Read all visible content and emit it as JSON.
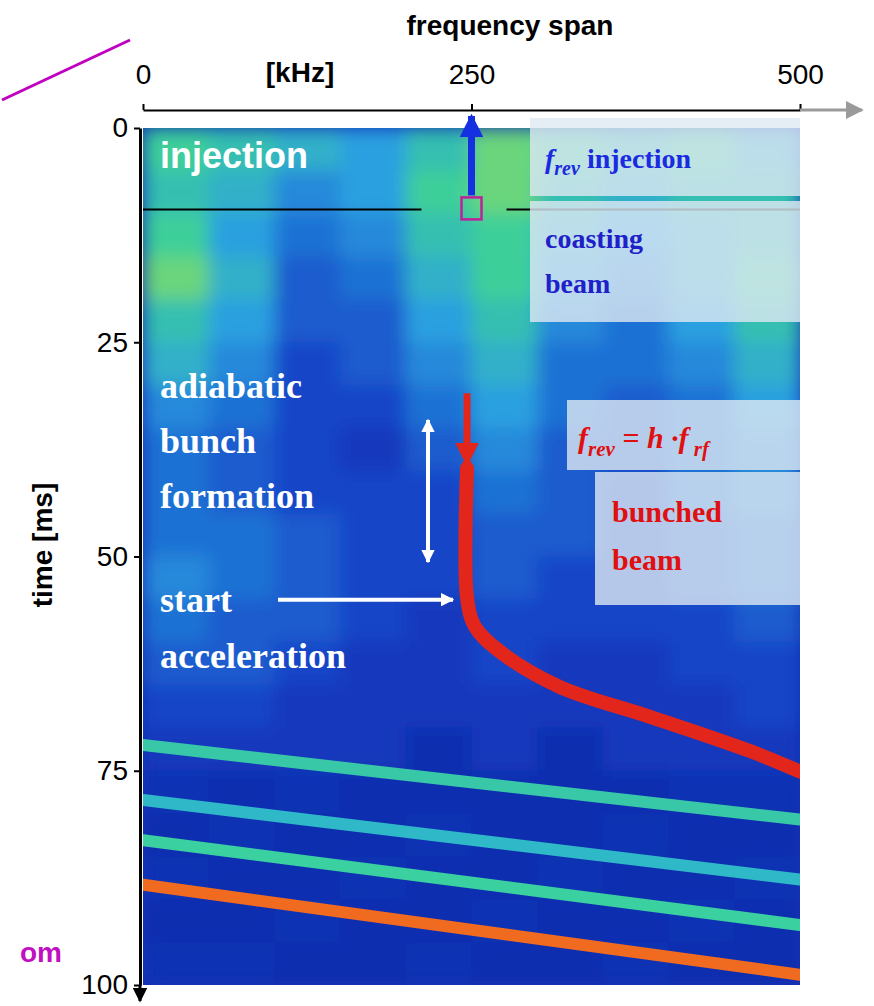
{
  "chart_data": {
    "type": "spectrogram",
    "xlabel": [
      "frequency span",
      "[kHz]"
    ],
    "ylabel": "time [ms]",
    "xlim": [
      0,
      500
    ],
    "ylim": [
      0,
      100
    ],
    "xticks": [
      0,
      250,
      500
    ],
    "yticks": [
      0,
      25,
      50,
      75,
      100
    ],
    "cells": {
      "xbins": [
        0,
        50,
        100,
        150,
        200,
        250,
        300,
        350,
        400,
        450,
        500
      ],
      "ybins": [
        0,
        5,
        10,
        15,
        20,
        25,
        30,
        35,
        40,
        45,
        50,
        55,
        60,
        65,
        70,
        75,
        80,
        85,
        90,
        95,
        100
      ],
      "range": [
        0,
        1
      ],
      "values": [
        [
          0.55,
          0.5,
          0.45,
          0.4,
          0.5,
          0.6,
          0.55,
          0.5,
          0.55,
          0.45
        ],
        [
          0.5,
          0.45,
          0.35,
          0.4,
          0.55,
          0.6,
          0.5,
          0.45,
          0.5,
          0.5
        ],
        [
          0.55,
          0.4,
          0.3,
          0.35,
          0.5,
          0.55,
          0.45,
          0.4,
          0.45,
          0.5
        ],
        [
          0.6,
          0.45,
          0.25,
          0.3,
          0.45,
          0.55,
          0.4,
          0.35,
          0.45,
          0.55
        ],
        [
          0.5,
          0.4,
          0.25,
          0.25,
          0.4,
          0.5,
          0.35,
          0.3,
          0.4,
          0.5
        ],
        [
          0.45,
          0.35,
          0.2,
          0.25,
          0.35,
          0.45,
          0.3,
          0.3,
          0.35,
          0.45
        ],
        [
          0.35,
          0.3,
          0.2,
          0.2,
          0.3,
          0.4,
          0.3,
          0.25,
          0.3,
          0.4
        ],
        [
          0.3,
          0.25,
          0.2,
          0.15,
          0.25,
          0.35,
          0.25,
          0.25,
          0.3,
          0.35
        ],
        [
          0.3,
          0.25,
          0.2,
          0.2,
          0.2,
          0.3,
          0.25,
          0.2,
          0.3,
          0.35
        ],
        [
          0.3,
          0.3,
          0.25,
          0.2,
          0.2,
          0.25,
          0.25,
          0.2,
          0.25,
          0.3
        ],
        [
          0.35,
          0.3,
          0.25,
          0.2,
          0.2,
          0.25,
          0.2,
          0.2,
          0.25,
          0.3
        ],
        [
          0.3,
          0.25,
          0.25,
          0.2,
          0.15,
          0.2,
          0.2,
          0.2,
          0.2,
          0.25
        ],
        [
          0.25,
          0.25,
          0.2,
          0.15,
          0.15,
          0.2,
          0.15,
          0.15,
          0.2,
          0.2
        ],
        [
          0.2,
          0.2,
          0.15,
          0.15,
          0.15,
          0.15,
          0.15,
          0.15,
          0.15,
          0.2
        ],
        [
          0.15,
          0.15,
          0.15,
          0.15,
          0.1,
          0.15,
          0.1,
          0.15,
          0.15,
          0.15
        ],
        [
          0.12,
          0.1,
          0.12,
          0.1,
          0.1,
          0.1,
          0.1,
          0.1,
          0.12,
          0.12
        ],
        [
          0.1,
          0.12,
          0.1,
          0.1,
          0.12,
          0.1,
          0.1,
          0.12,
          0.1,
          0.1
        ],
        [
          0.12,
          0.1,
          0.1,
          0.12,
          0.1,
          0.1,
          0.12,
          0.1,
          0.1,
          0.12
        ],
        [
          0.1,
          0.1,
          0.12,
          0.1,
          0.1,
          0.12,
          0.1,
          0.1,
          0.12,
          0.1
        ],
        [
          0.12,
          0.12,
          0.1,
          0.1,
          0.12,
          0.1,
          0.1,
          0.12,
          0.1,
          0.1
        ]
      ]
    },
    "series": [
      {
        "type": "line",
        "color": "#e3261b",
        "x": [
          246.6,
          246.6,
          252.7,
          271.7,
          317,
          386,
          462,
          500
        ],
        "values": [
          39.7,
          54.8,
          58.2,
          61.1,
          65.2,
          68.7,
          72.7,
          75.1
        ]
      },
      {
        "type": "line",
        "color": "#38c8a8",
        "x": [
          0,
          500
        ],
        "values": [
          72.0,
          80.7
        ]
      },
      {
        "type": "line",
        "color": "#2fb8c8",
        "x": [
          0,
          500
        ],
        "values": [
          78.4,
          87.7
        ]
      },
      {
        "type": "line",
        "color": "#3ad0a0",
        "x": [
          0,
          500
        ],
        "values": [
          83.1,
          93.0
        ]
      },
      {
        "type": "line",
        "color": "#f06a20",
        "x": [
          0,
          500
        ],
        "values": [
          88.3,
          98.8
        ]
      }
    ],
    "injection_marker": {
      "x": 250,
      "y": 9.5
    },
    "annotations": [
      {
        "color": "#ffffff",
        "lines": [
          [
            {
              "text": "injection",
              "italic": false,
              "sub": false
            }
          ]
        ]
      },
      {
        "color": "#1a2ae0",
        "lines": [
          [
            {
              "text": "f",
              "italic": true,
              "sub": false
            },
            {
              "text": "rev",
              "italic": true,
              "sub": true
            },
            {
              "text": " injection",
              "italic": false,
              "sub": false
            }
          ]
        ]
      },
      {
        "color": "#2020c8",
        "lines": [
          [
            {
              "text": "coasting",
              "italic": false,
              "sub": false
            }
          ],
          [
            {
              "text": "beam",
              "italic": false,
              "sub": false
            }
          ]
        ]
      },
      {
        "color": "#ffffff",
        "lines": [
          [
            {
              "text": "adiabatic",
              "italic": false,
              "sub": false
            }
          ],
          [
            {
              "text": "bunch",
              "italic": false,
              "sub": false
            }
          ],
          [
            {
              "text": "formation",
              "italic": false,
              "sub": false
            }
          ]
        ]
      },
      {
        "color": "#ffffff",
        "lines": [
          [
            {
              "text": "start",
              "italic": false,
              "sub": false
            }
          ],
          [
            {
              "text": "acceleration",
              "italic": false,
              "sub": false
            }
          ]
        ]
      },
      {
        "color": "#e01010",
        "lines": [
          [
            {
              "text": "f",
              "italic": true,
              "sub": false
            },
            {
              "text": "rev",
              "italic": true,
              "sub": true
            },
            {
              "text": " = h  ·",
              "italic": true,
              "sub": false
            },
            {
              "text": "f",
              "italic": true,
              "sub": false
            },
            {
              "text": " rf",
              "italic": true,
              "sub": true
            }
          ]
        ]
      },
      {
        "color": "#e01010",
        "lines": [
          [
            {
              "text": "bunched",
              "italic": false,
              "sub": false
            }
          ],
          [
            {
              "text": "beam",
              "italic": false,
              "sub": false
            }
          ]
        ]
      },
      {
        "color": "#c010c0",
        "lines": [
          [
            {
              "text": "om",
              "italic": false,
              "sub": false
            }
          ]
        ]
      }
    ]
  }
}
